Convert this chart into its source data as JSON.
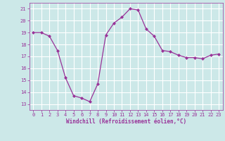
{
  "x": [
    0,
    1,
    2,
    3,
    4,
    5,
    6,
    7,
    8,
    9,
    10,
    11,
    12,
    13,
    14,
    15,
    16,
    17,
    18,
    19,
    20,
    21,
    22,
    23
  ],
  "y": [
    19,
    19,
    18.7,
    17.5,
    15.2,
    13.7,
    13.5,
    13.2,
    14.7,
    18.8,
    19.8,
    20.3,
    21.0,
    20.9,
    19.3,
    18.7,
    17.5,
    17.4,
    17.1,
    16.9,
    16.9,
    16.8,
    17.1,
    17.2
  ],
  "line_color": "#993399",
  "marker": "D",
  "marker_size": 2.0,
  "bg_color": "#cce8e8",
  "grid_color": "#ffffff",
  "xlabel": "Windchill (Refroidissement éolien,°C)",
  "xlabel_color": "#993399",
  "tick_color": "#993399",
  "xlim": [
    -0.5,
    23.5
  ],
  "ylim": [
    12.5,
    21.5
  ],
  "yticks": [
    13,
    14,
    15,
    16,
    17,
    18,
    19,
    20,
    21
  ],
  "xticks": [
    0,
    1,
    2,
    3,
    4,
    5,
    6,
    7,
    8,
    9,
    10,
    11,
    12,
    13,
    14,
    15,
    16,
    17,
    18,
    19,
    20,
    21,
    22,
    23
  ],
  "tick_fontsize": 5.0,
  "xlabel_fontsize": 5.5
}
